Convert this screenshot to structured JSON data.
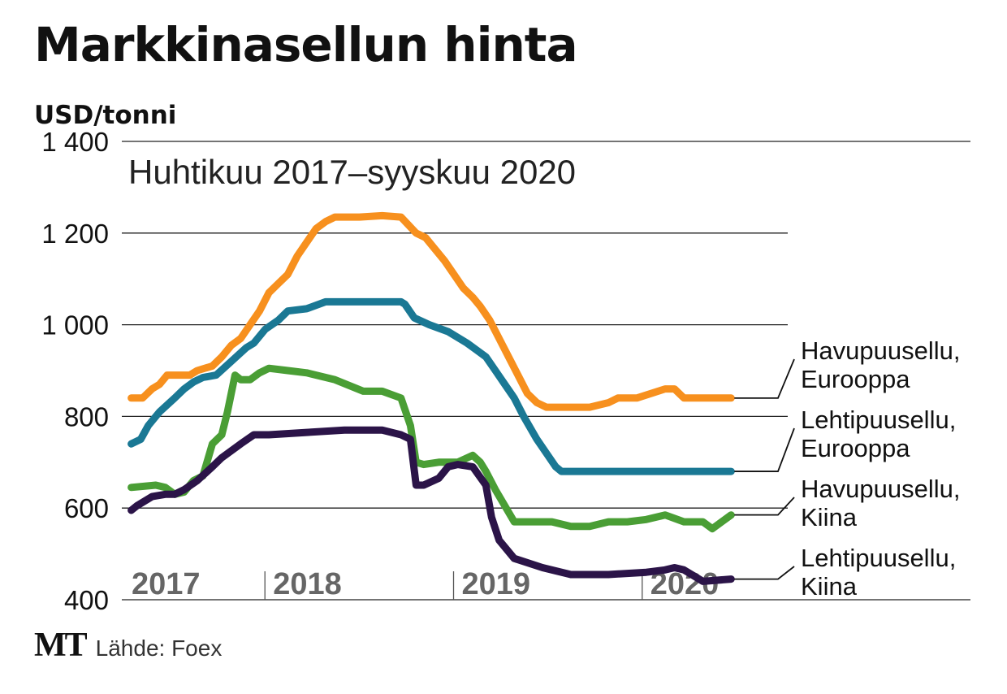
{
  "header": {
    "title": "Markkinasellun hinta",
    "unit": "USD/tonni"
  },
  "footer": {
    "logo": "MT",
    "source": "Lähde: Foex"
  },
  "chart_data": {
    "type": "line",
    "title": "Markkinasellun hinta",
    "subtitle": "Huhtikuu 2017–syyskuu 2020",
    "ylabel": "USD/tonni",
    "xlabel": "",
    "xlim": [
      2017.25,
      2020.75
    ],
    "ylim": [
      400,
      1400
    ],
    "yticks": [
      400,
      600,
      800,
      1000,
      1200,
      1400
    ],
    "ytick_labels": [
      "400",
      "600",
      "800",
      "1 000",
      "1 200",
      "1 400"
    ],
    "xticks": [
      2017,
      2018,
      2019,
      2020
    ],
    "xtick_labels": [
      "2017",
      "2018",
      "2019",
      "2020"
    ],
    "grid": true,
    "colors": {
      "orange": "#F7901E",
      "teal": "#1A7894",
      "green": "#4A9E35",
      "purple": "#2B1448",
      "tick_text": "#666666"
    },
    "series": [
      {
        "label_lines": [
          "Havupuusellu,",
          "Eurooppa"
        ],
        "color": "#F7901E",
        "x": [
          2017.27,
          2017.33,
          2017.38,
          2017.42,
          2017.46,
          2017.58,
          2017.62,
          2017.7,
          2017.75,
          2017.8,
          2017.85,
          2017.9,
          2017.95,
          2018.0,
          2018.05,
          2018.1,
          2018.15,
          2018.2,
          2018.25,
          2018.3,
          2018.35,
          2018.4,
          2018.48,
          2018.6,
          2018.7,
          2018.78,
          2018.83,
          2018.88,
          2018.93,
          2018.98,
          2019.03,
          2019.08,
          2019.12,
          2019.17,
          2019.22,
          2019.27,
          2019.32,
          2019.37,
          2019.42,
          2019.47,
          2019.5,
          2019.55,
          2019.6,
          2019.7,
          2019.8,
          2019.85,
          2019.95,
          2020.1,
          2020.15,
          2020.2,
          2020.25,
          2020.3,
          2020.4,
          2020.45
        ],
        "values": [
          840,
          840,
          860,
          870,
          890,
          890,
          900,
          910,
          930,
          955,
          970,
          1000,
          1030,
          1070,
          1090,
          1110,
          1150,
          1180,
          1210,
          1225,
          1235,
          1235,
          1235,
          1238,
          1235,
          1200,
          1190,
          1165,
          1140,
          1110,
          1080,
          1060,
          1040,
          1010,
          970,
          930,
          890,
          850,
          830,
          820,
          820,
          820,
          820,
          820,
          830,
          840,
          840,
          860,
          860,
          840,
          840,
          840,
          840,
          840
        ]
      },
      {
        "label_lines": [
          "Lehtipuusellu,",
          "Eurooppa"
        ],
        "color": "#1A7894",
        "x": [
          2017.27,
          2017.32,
          2017.36,
          2017.42,
          2017.5,
          2017.55,
          2017.6,
          2017.65,
          2017.72,
          2017.8,
          2017.88,
          2017.92,
          2017.98,
          2018.05,
          2018.1,
          2018.2,
          2018.3,
          2018.5,
          2018.7,
          2018.72,
          2018.77,
          2018.85,
          2018.95,
          2019.05,
          2019.1,
          2019.15,
          2019.2,
          2019.25,
          2019.3,
          2019.35,
          2019.42,
          2019.47,
          2019.52,
          2019.55,
          2019.65,
          2019.8,
          2020.0,
          2020.2,
          2020.45
        ],
        "values": [
          740,
          750,
          780,
          810,
          840,
          860,
          875,
          885,
          890,
          920,
          950,
          960,
          990,
          1010,
          1030,
          1035,
          1050,
          1050,
          1050,
          1045,
          1015,
          1000,
          985,
          960,
          945,
          930,
          900,
          870,
          840,
          800,
          750,
          720,
          690,
          680,
          680,
          680,
          680,
          680,
          680
        ]
      },
      {
        "label_lines": [
          "Havupuusellu,",
          "Kiina"
        ],
        "color": "#4A9E35",
        "x": [
          2017.27,
          2017.4,
          2017.45,
          2017.5,
          2017.55,
          2017.6,
          2017.65,
          2017.7,
          2017.75,
          2017.78,
          2017.82,
          2017.85,
          2017.9,
          2017.95,
          2018.0,
          2018.1,
          2018.2,
          2018.35,
          2018.5,
          2018.6,
          2018.7,
          2018.75,
          2018.78,
          2018.82,
          2018.9,
          2019.0,
          2019.08,
          2019.12,
          2019.15,
          2019.2,
          2019.3,
          2019.5,
          2019.6,
          2019.7,
          2019.8,
          2019.9,
          2020.0,
          2020.1,
          2020.2,
          2020.3,
          2020.35,
          2020.4,
          2020.45
        ],
        "values": [
          645,
          650,
          645,
          630,
          635,
          660,
          670,
          740,
          760,
          810,
          890,
          880,
          880,
          895,
          905,
          900,
          895,
          880,
          855,
          855,
          840,
          780,
          700,
          695,
          700,
          700,
          715,
          700,
          680,
          640,
          570,
          570,
          560,
          560,
          570,
          570,
          575,
          585,
          570,
          570,
          555,
          570,
          585
        ]
      },
      {
        "label_lines": [
          "Lehtipuusellu,",
          "Kiina"
        ],
        "color": "#2B1448",
        "x": [
          2017.27,
          2017.3,
          2017.38,
          2017.45,
          2017.5,
          2017.55,
          2017.62,
          2017.7,
          2017.75,
          2017.85,
          2017.92,
          2018.0,
          2018.2,
          2018.4,
          2018.6,
          2018.7,
          2018.75,
          2018.78,
          2018.82,
          2018.9,
          2018.95,
          2019.0,
          2019.08,
          2019.15,
          2019.18,
          2019.22,
          2019.3,
          2019.45,
          2019.6,
          2019.8,
          2020.0,
          2020.1,
          2020.15,
          2020.2,
          2020.3,
          2020.45
        ],
        "values": [
          595,
          605,
          625,
          630,
          630,
          640,
          660,
          690,
          710,
          740,
          760,
          760,
          765,
          770,
          770,
          760,
          750,
          650,
          650,
          665,
          690,
          695,
          690,
          650,
          580,
          530,
          490,
          470,
          455,
          455,
          460,
          465,
          470,
          465,
          440,
          445
        ]
      }
    ]
  }
}
